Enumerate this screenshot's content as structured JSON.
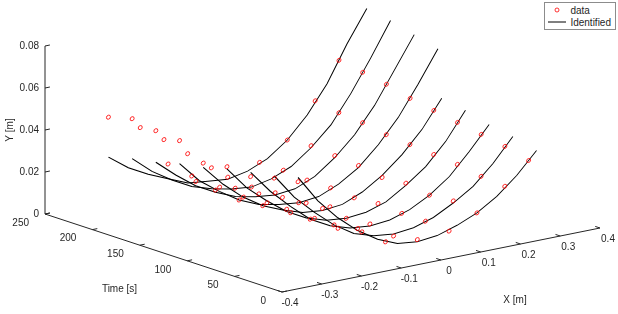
{
  "chart_data": {
    "type": "line3d",
    "x_label": "X [m]",
    "y_label": "Y [m]",
    "z_label": "Time [s]",
    "xlim": [
      -0.4,
      0.4
    ],
    "xticks": [
      -0.4,
      -0.3,
      -0.2,
      -0.1,
      0,
      0.1,
      0.2,
      0.3,
      0.4
    ],
    "ylim": [
      0,
      0.08
    ],
    "yticks": [
      0,
      0.02,
      0.04,
      0.06,
      0.08
    ],
    "zlim": [
      0,
      250
    ],
    "zticks": [
      0,
      50,
      100,
      150,
      200,
      250
    ],
    "grid": false,
    "legend": "top-right",
    "series": [
      {
        "name": "data",
        "color": "#ff0000",
        "marker": "circle",
        "line_style": "none",
        "slices": [
          {
            "time": 25,
            "x": [
              -0.3,
              -0.22,
              -0.15,
              -0.08,
              0,
              0.08,
              0.15,
              0.22,
              0.28
            ],
            "y": [
              0.045,
              0.03,
              0.017,
              0.008,
              0.006,
              0.007,
              0.013,
              0.023,
              0.033
            ]
          },
          {
            "time": 50,
            "x": [
              -0.3,
              -0.22,
              -0.15,
              -0.08,
              0,
              0.08,
              0.15,
              0.22,
              0.28
            ],
            "y": [
              0.043,
              0.028,
              0.015,
              0.009,
              0.004,
              0.008,
              0.015,
              0.024,
              0.036
            ]
          },
          {
            "time": 75,
            "x": [
              -0.3,
              -0.22,
              -0.15,
              -0.08,
              0,
              0.08,
              0.15,
              0.22,
              0.28
            ],
            "y": [
              0.04,
              0.027,
              0.014,
              0.007,
              0.006,
              0.008,
              0.014,
              0.026,
              0.038
            ]
          },
          {
            "time": 100,
            "x": [
              -0.3,
              -0.22,
              -0.15,
              -0.08,
              0,
              0.08,
              0.15,
              0.22,
              0.28
            ],
            "y": [
              0.041,
              0.025,
              0.015,
              0.008,
              0.005,
              0.009,
              0.016,
              0.027,
              0.04
            ]
          },
          {
            "time": 125,
            "x": [
              -0.3,
              -0.22,
              -0.15,
              -0.08,
              0,
              0.08,
              0.15,
              0.22,
              0.28
            ],
            "y": [
              0.039,
              0.024,
              0.013,
              0.007,
              0.006,
              0.008,
              0.015,
              0.028,
              0.042
            ]
          },
          {
            "time": 150,
            "x": [
              -0.3,
              -0.22,
              -0.15,
              -0.08,
              0,
              0.08,
              0.15,
              0.22,
              0.28
            ],
            "y": [
              0.046,
              0.03,
              0.012,
              0.008,
              0.005,
              0.009,
              0.017,
              0.029,
              0.044
            ]
          },
          {
            "time": 175,
            "x": [
              -0.3,
              -0.22,
              -0.15,
              -0.08,
              0,
              0.08,
              0.15,
              0.22,
              0.28
            ],
            "y": [
              0.047,
              0.033,
              0.013,
              0.007,
              0.006,
              0.009,
              0.018,
              0.031,
              0.047
            ]
          },
          {
            "time": 200,
            "x": [
              -0.3,
              -0.22,
              -0.15,
              -0.08,
              0,
              0.08,
              0.15,
              0.22,
              0.28
            ],
            "y": [
              0.049,
              0.036,
              0.016,
              0.008,
              0.005,
              0.01,
              0.019,
              0.032,
              0.049
            ]
          },
          {
            "time": 225,
            "x": [
              -0.3,
              -0.22,
              -0.15,
              -0.08,
              0,
              0.08,
              0.15,
              0.22,
              0.28
            ],
            "y": [
              0.046,
              0.038,
              0.018,
              0.007,
              0.006,
              0.01,
              0.018,
              0.034,
              0.051
            ]
          }
        ]
      },
      {
        "name": "Identified",
        "color": "#000000",
        "marker": "none",
        "line_style": "solid",
        "slices": [
          {
            "time": 25,
            "x": [
              -0.3,
              -0.25,
              -0.2,
              -0.15,
              -0.1,
              -0.05,
              0,
              0.05,
              0.1,
              0.15,
              0.2,
              0.25,
              0.3
            ],
            "y": [
              0.047,
              0.034,
              0.024,
              0.016,
              0.01,
              0.006,
              0.005,
              0.006,
              0.009,
              0.013,
              0.019,
              0.027,
              0.037
            ]
          },
          {
            "time": 50,
            "x": [
              -0.3,
              -0.25,
              -0.2,
              -0.15,
              -0.1,
              -0.05,
              0,
              0.05,
              0.1,
              0.15,
              0.2,
              0.25,
              0.3
            ],
            "y": [
              0.044,
              0.032,
              0.023,
              0.015,
              0.009,
              0.006,
              0.005,
              0.006,
              0.009,
              0.014,
              0.02,
              0.029,
              0.04
            ]
          },
          {
            "time": 75,
            "x": [
              -0.3,
              -0.25,
              -0.2,
              -0.15,
              -0.1,
              -0.05,
              0,
              0.05,
              0.1,
              0.15,
              0.2,
              0.25,
              0.3
            ],
            "y": [
              0.042,
              0.031,
              0.022,
              0.014,
              0.009,
              0.006,
              0.005,
              0.006,
              0.009,
              0.014,
              0.021,
              0.031,
              0.042
            ]
          },
          {
            "time": 100,
            "x": [
              -0.3,
              -0.25,
              -0.2,
              -0.15,
              -0.1,
              -0.05,
              0,
              0.05,
              0.1,
              0.15,
              0.2,
              0.25,
              0.3
            ],
            "y": [
              0.04,
              0.029,
              0.021,
              0.014,
              0.009,
              0.006,
              0.005,
              0.006,
              0.009,
              0.015,
              0.022,
              0.032,
              0.045
            ]
          },
          {
            "time": 125,
            "x": [
              -0.3,
              -0.25,
              -0.2,
              -0.15,
              -0.1,
              -0.05,
              0,
              0.05,
              0.1,
              0.15,
              0.2,
              0.25,
              0.3
            ],
            "y": [
              0.037,
              0.027,
              0.019,
              0.013,
              0.009,
              0.006,
              0.005,
              0.006,
              0.01,
              0.016,
              0.024,
              0.034,
              0.047
            ]
          },
          {
            "time": 150,
            "x": [
              -0.3,
              -0.25,
              -0.2,
              -0.15,
              -0.1,
              -0.05,
              0,
              0.05,
              0.1,
              0.15,
              0.2,
              0.25,
              0.3,
              0.35
            ],
            "y": [
              0.035,
              0.025,
              0.018,
              0.012,
              0.008,
              0.006,
              0.005,
              0.006,
              0.01,
              0.016,
              0.025,
              0.036,
              0.05,
              0.065
            ]
          },
          {
            "time": 175,
            "x": [
              -0.3,
              -0.25,
              -0.2,
              -0.15,
              -0.1,
              -0.05,
              0,
              0.05,
              0.1,
              0.15,
              0.2,
              0.25,
              0.3,
              0.35
            ],
            "y": [
              0.032,
              0.024,
              0.017,
              0.012,
              0.008,
              0.006,
              0.005,
              0.006,
              0.01,
              0.017,
              0.026,
              0.038,
              0.053,
              0.068
            ]
          },
          {
            "time": 200,
            "x": [
              -0.3,
              -0.25,
              -0.2,
              -0.15,
              -0.1,
              -0.05,
              0,
              0.05,
              0.1,
              0.15,
              0.2,
              0.25,
              0.3,
              0.35
            ],
            "y": [
              0.03,
              0.022,
              0.016,
              0.011,
              0.008,
              0.006,
              0.005,
              0.007,
              0.011,
              0.018,
              0.027,
              0.04,
              0.055,
              0.071
            ]
          },
          {
            "time": 225,
            "x": [
              -0.3,
              -0.25,
              -0.2,
              -0.15,
              -0.1,
              -0.05,
              0,
              0.05,
              0.1,
              0.15,
              0.2,
              0.25,
              0.3,
              0.35
            ],
            "y": [
              0.027,
              0.02,
              0.015,
              0.011,
              0.007,
              0.006,
              0.005,
              0.007,
              0.011,
              0.018,
              0.028,
              0.041,
              0.058,
              0.073
            ]
          }
        ]
      }
    ]
  }
}
